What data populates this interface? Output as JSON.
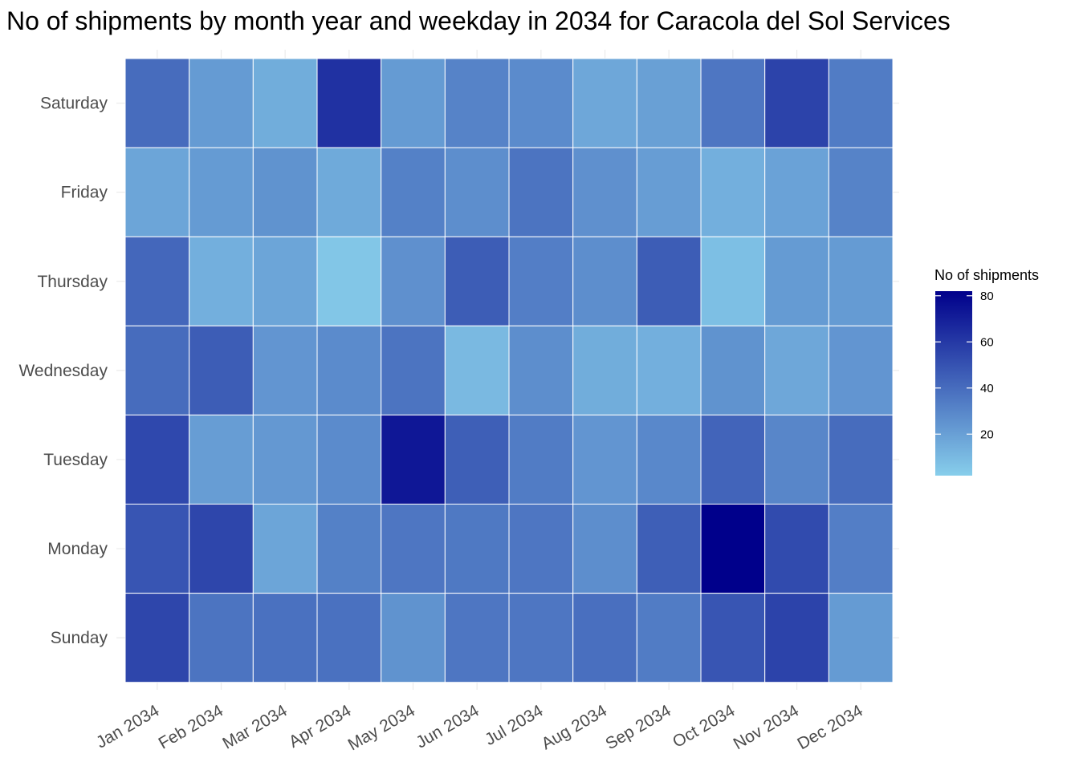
{
  "chart_data": {
    "type": "heatmap",
    "title": "No of shipments by month year and weekday in 2034 for Caracola del Sol Services",
    "x_categories": [
      "Jan 2034",
      "Feb 2034",
      "Mar 2034",
      "Apr 2034",
      "May 2034",
      "Jun 2034",
      "Jul 2034",
      "Aug 2034",
      "Sep 2034",
      "Oct 2034",
      "Nov 2034",
      "Dec 2034"
    ],
    "y_categories": [
      "Saturday",
      "Friday",
      "Thursday",
      "Wednesday",
      "Tuesday",
      "Monday",
      "Sunday"
    ],
    "values": [
      [
        40,
        22,
        15,
        63,
        22,
        31,
        28,
        17,
        20,
        36,
        56,
        34
      ],
      [
        18,
        22,
        25,
        16,
        32,
        27,
        37,
        26,
        21,
        14,
        19,
        31
      ],
      [
        42,
        14,
        18,
        5,
        26,
        46,
        33,
        27,
        46,
        8,
        22,
        22
      ],
      [
        40,
        46,
        24,
        28,
        37,
        10,
        27,
        15,
        14,
        25,
        17,
        24
      ],
      [
        54,
        21,
        23,
        28,
        73,
        45,
        34,
        24,
        29,
        43,
        30,
        40
      ],
      [
        49,
        55,
        18,
        32,
        36,
        35,
        36,
        27,
        45,
        82,
        53,
        33
      ],
      [
        55,
        37,
        38,
        38,
        25,
        36,
        36,
        39,
        34,
        49,
        56,
        22
      ]
    ],
    "legend": {
      "title": "No of shipments",
      "ticks": [
        20,
        40,
        60,
        80
      ],
      "min": 2,
      "max": 82,
      "low_color": "#87CEEB",
      "high_color": "#00008B",
      "placement": "right"
    },
    "grid": true
  }
}
